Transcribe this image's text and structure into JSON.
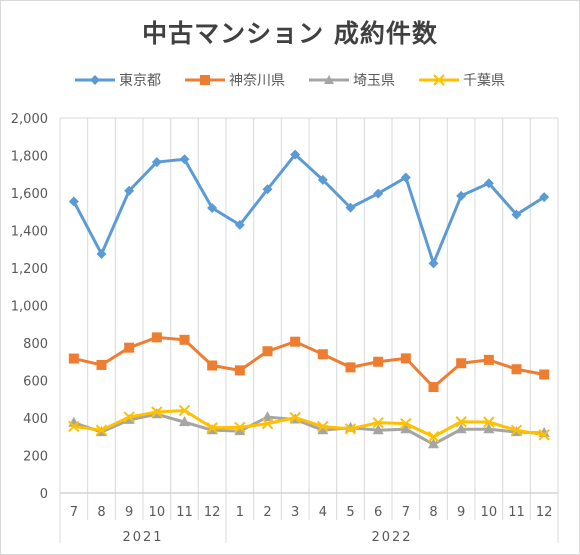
{
  "chart_data": {
    "type": "line",
    "title": "中古マンション 成約件数",
    "categories": [
      "7",
      "8",
      "9",
      "10",
      "11",
      "12",
      "1",
      "2",
      "3",
      "4",
      "5",
      "6",
      "7",
      "8",
      "9",
      "10",
      "11",
      "12"
    ],
    "years": [
      {
        "label": "2021",
        "start": 0,
        "end": 5
      },
      {
        "label": "2022",
        "start": 6,
        "end": 17
      }
    ],
    "ylim": [
      0,
      2000
    ],
    "yticks": [
      "0",
      "200",
      "400",
      "600",
      "800",
      "1,000",
      "1,200",
      "1,400",
      "1,600",
      "1,800",
      "2,000"
    ],
    "ytick_values": [
      0,
      200,
      400,
      600,
      800,
      1000,
      1200,
      1400,
      1600,
      1800,
      2000
    ],
    "grid": "vertical",
    "legend_position": "top",
    "series": [
      {
        "name": "東京都",
        "color": "#5b9bd5",
        "marker": "diamond",
        "values": [
          1555,
          1275,
          1612,
          1765,
          1780,
          1520,
          1430,
          1620,
          1805,
          1670,
          1522,
          1597,
          1683,
          1225,
          1585,
          1652,
          1485,
          1578
        ]
      },
      {
        "name": "神奈川県",
        "color": "#ed7d31",
        "marker": "square",
        "values": [
          717,
          683,
          775,
          830,
          817,
          680,
          654,
          756,
          807,
          740,
          670,
          700,
          718,
          565,
          692,
          710,
          660,
          632
        ]
      },
      {
        "name": "埼玉県",
        "color": "#a5a5a5",
        "marker": "triangle",
        "values": [
          375,
          325,
          390,
          420,
          378,
          335,
          330,
          405,
          392,
          335,
          348,
          335,
          340,
          260,
          340,
          340,
          325,
          320
        ]
      },
      {
        "name": "千葉県",
        "color": "#ffc000",
        "marker": "x",
        "values": [
          355,
          335,
          405,
          432,
          440,
          348,
          350,
          370,
          402,
          355,
          342,
          375,
          370,
          300,
          380,
          378,
          335,
          310
        ]
      }
    ]
  }
}
